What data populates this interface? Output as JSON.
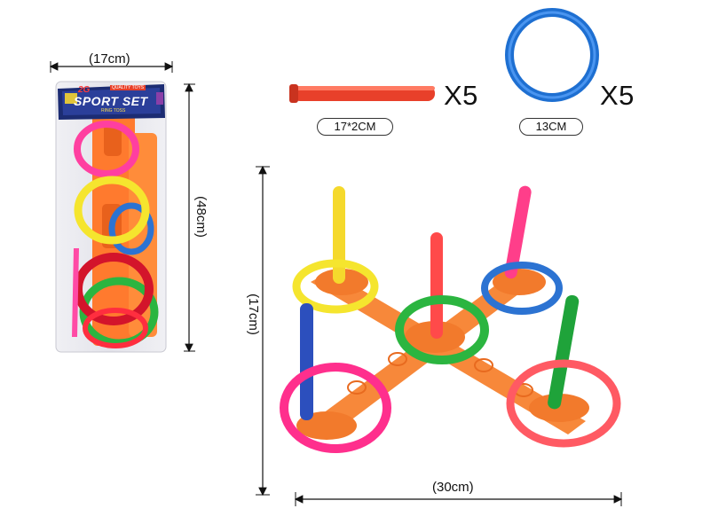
{
  "package": {
    "brand_mark": "2G",
    "title": "SPORT SET",
    "badge_top": "QUALITY TOYS",
    "badge_bottom": "RING TOSS",
    "width_label": "(17cm)",
    "height_label": "(48cm)"
  },
  "components": {
    "stick": {
      "qty": "X5",
      "size_label": "17*2CM",
      "color": "#e8402a"
    },
    "ring": {
      "qty": "X5",
      "size_label": "13CM",
      "color": "#1e6fd1"
    }
  },
  "assembly": {
    "height_label": "(17cm)",
    "width_label": "(30cm)",
    "base_color": "#f7883a",
    "ring_colors": [
      "#f5e52e",
      "#2c73d2",
      "#2bb540",
      "#ff2f8d",
      "#ff5a63"
    ],
    "peg_colors": [
      "#f5d92c",
      "#ff3e8a",
      "#ff4a4a",
      "#2c4fbd",
      "#1fa33a"
    ]
  }
}
